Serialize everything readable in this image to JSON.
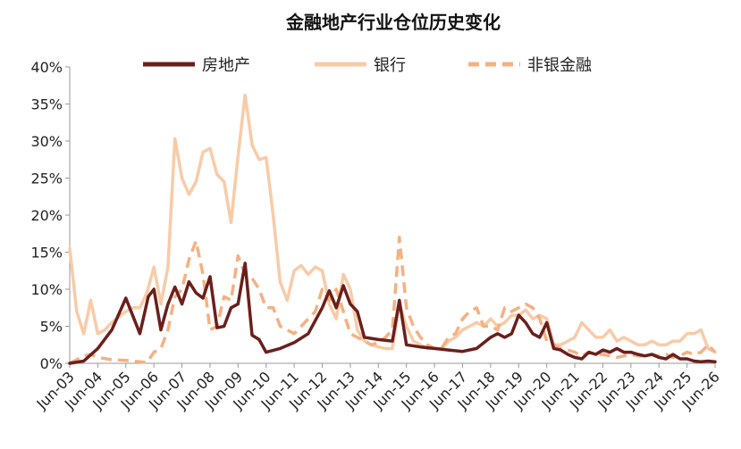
{
  "chart_data": {
    "type": "line",
    "title": "金融地产行业仓位历史变化",
    "xlabel": "",
    "ylabel": "",
    "ylim": [
      0,
      40
    ],
    "y_ticks": [
      "0%",
      "5%",
      "10%",
      "15%",
      "20%",
      "25%",
      "30%",
      "35%",
      "40%"
    ],
    "x_ticks": [
      "Jun-03",
      "Jun-04",
      "Jun-05",
      "Jun-06",
      "Jun-07",
      "Jun-08",
      "Jun-09",
      "Jun-10",
      "Jun-11",
      "Jun-12",
      "Jun-13",
      "Jun-14",
      "Jun-15",
      "Jun-16",
      "Jun-17",
      "Jun-18",
      "Jun-19",
      "Jun-20",
      "Jun-21",
      "Jun-22",
      "Jun-23",
      "Jun-24",
      "Jun-25",
      "Jun-26"
    ],
    "x_range": [
      0,
      23
    ],
    "legend_position": "top",
    "grid": false,
    "series": [
      {
        "name": "房地产",
        "color": "#6b1f1b",
        "style": "solid",
        "points": [
          [
            0,
            0
          ],
          [
            0.5,
            0.3
          ],
          [
            1,
            2
          ],
          [
            1.5,
            4.5
          ],
          [
            2,
            8.8
          ],
          [
            2.5,
            4
          ],
          [
            2.8,
            9
          ],
          [
            3,
            10
          ],
          [
            3.25,
            4.5
          ],
          [
            3.5,
            8
          ],
          [
            3.75,
            10.3
          ],
          [
            4,
            8
          ],
          [
            4.25,
            11
          ],
          [
            4.5,
            9.5
          ],
          [
            4.75,
            8.8
          ],
          [
            5,
            11.7
          ],
          [
            5.25,
            4.8
          ],
          [
            5.5,
            5
          ],
          [
            5.75,
            7.5
          ],
          [
            6,
            8
          ],
          [
            6.25,
            13.5
          ],
          [
            6.5,
            3.8
          ],
          [
            6.75,
            3.2
          ],
          [
            7,
            1.5
          ],
          [
            7.5,
            2
          ],
          [
            8,
            2.8
          ],
          [
            8.5,
            4
          ],
          [
            9,
            7.5
          ],
          [
            9.25,
            9.8
          ],
          [
            9.5,
            7.5
          ],
          [
            9.75,
            10.5
          ],
          [
            10,
            8
          ],
          [
            10.25,
            7
          ],
          [
            10.5,
            3.5
          ],
          [
            11,
            3.2
          ],
          [
            11.5,
            3
          ],
          [
            11.75,
            8.5
          ],
          [
            12,
            2.5
          ],
          [
            12.5,
            2.2
          ],
          [
            13,
            2
          ],
          [
            13.5,
            1.8
          ],
          [
            14,
            1.6
          ],
          [
            14.5,
            2
          ],
          [
            15,
            3.5
          ],
          [
            15.25,
            4
          ],
          [
            15.5,
            3.5
          ],
          [
            15.75,
            4
          ],
          [
            16,
            6.5
          ],
          [
            16.25,
            5.5
          ],
          [
            16.5,
            4
          ],
          [
            16.75,
            3.5
          ],
          [
            17,
            5.5
          ],
          [
            17.25,
            2
          ],
          [
            17.5,
            1.8
          ],
          [
            17.75,
            1.2
          ],
          [
            18,
            0.8
          ],
          [
            18.25,
            0.6
          ],
          [
            18.5,
            1.5
          ],
          [
            18.75,
            1.2
          ],
          [
            19,
            1.8
          ],
          [
            19.25,
            1.5
          ],
          [
            19.5,
            2
          ],
          [
            19.75,
            1.5
          ],
          [
            20,
            1.5
          ],
          [
            20.25,
            1.2
          ],
          [
            20.5,
            1
          ],
          [
            20.75,
            1.2
          ],
          [
            21,
            0.8
          ],
          [
            21.25,
            0.6
          ],
          [
            21.5,
            1.2
          ],
          [
            21.75,
            0.6
          ],
          [
            22,
            0.6
          ],
          [
            22.25,
            0.3
          ],
          [
            22.5,
            0.2
          ],
          [
            22.75,
            0.3
          ],
          [
            23,
            0.2
          ]
        ]
      },
      {
        "name": "银行",
        "color": "#f8cba8",
        "style": "solid",
        "points": [
          [
            0,
            15.5
          ],
          [
            0.25,
            7
          ],
          [
            0.5,
            4
          ],
          [
            0.75,
            8.5
          ],
          [
            1,
            4
          ],
          [
            1.25,
            4.5
          ],
          [
            1.5,
            5.5
          ],
          [
            2,
            7
          ],
          [
            2.25,
            7.5
          ],
          [
            2.5,
            7.5
          ],
          [
            2.75,
            9.5
          ],
          [
            3,
            13
          ],
          [
            3.25,
            8
          ],
          [
            3.5,
            13
          ],
          [
            3.75,
            30.3
          ],
          [
            4,
            25
          ],
          [
            4.25,
            22.8
          ],
          [
            4.5,
            24.5
          ],
          [
            4.75,
            28.5
          ],
          [
            5,
            29
          ],
          [
            5.25,
            25.5
          ],
          [
            5.5,
            24.5
          ],
          [
            5.75,
            19
          ],
          [
            6,
            28
          ],
          [
            6.25,
            36.2
          ],
          [
            6.5,
            29.5
          ],
          [
            6.75,
            27.5
          ],
          [
            7,
            27.8
          ],
          [
            7.25,
            20
          ],
          [
            7.5,
            11
          ],
          [
            7.75,
            8.5
          ],
          [
            8,
            12.5
          ],
          [
            8.25,
            13.2
          ],
          [
            8.5,
            12
          ],
          [
            8.75,
            13
          ],
          [
            9,
            12.5
          ],
          [
            9.25,
            8
          ],
          [
            9.5,
            6
          ],
          [
            9.75,
            12
          ],
          [
            10,
            10
          ],
          [
            10.25,
            4.5
          ],
          [
            10.5,
            3
          ],
          [
            10.75,
            2.5
          ],
          [
            11,
            2.2
          ],
          [
            11.25,
            2
          ],
          [
            11.5,
            2
          ],
          [
            11.75,
            8
          ],
          [
            12,
            5
          ],
          [
            12.25,
            3
          ],
          [
            12.5,
            2.5
          ],
          [
            12.75,
            2
          ],
          [
            13,
            2
          ],
          [
            13.25,
            2
          ],
          [
            13.5,
            3
          ],
          [
            13.75,
            3.5
          ],
          [
            14,
            4.5
          ],
          [
            14.25,
            5
          ],
          [
            14.5,
            5.5
          ],
          [
            14.75,
            5
          ],
          [
            15,
            6
          ],
          [
            15.25,
            5
          ],
          [
            15.5,
            5.5
          ],
          [
            15.75,
            6.5
          ],
          [
            16,
            6.5
          ],
          [
            16.25,
            7.2
          ],
          [
            16.5,
            6
          ],
          [
            16.75,
            6.5
          ],
          [
            17,
            6
          ],
          [
            17.25,
            2.5
          ],
          [
            17.5,
            2.5
          ],
          [
            17.75,
            3
          ],
          [
            18,
            3.5
          ],
          [
            18.25,
            5.5
          ],
          [
            18.5,
            4.5
          ],
          [
            18.75,
            3.5
          ],
          [
            19,
            3.5
          ],
          [
            19.25,
            4.5
          ],
          [
            19.5,
            3
          ],
          [
            19.75,
            3.5
          ],
          [
            20,
            3
          ],
          [
            20.25,
            2.5
          ],
          [
            20.5,
            2.5
          ],
          [
            20.75,
            3
          ],
          [
            21,
            2.5
          ],
          [
            21.25,
            2.5
          ],
          [
            21.5,
            3
          ],
          [
            21.75,
            3
          ],
          [
            22,
            4
          ],
          [
            22.25,
            4
          ],
          [
            22.5,
            4.5
          ],
          [
            22.75,
            2
          ],
          [
            23,
            1.5
          ]
        ]
      },
      {
        "name": "非银金融",
        "color": "#f4b183",
        "style": "dashed",
        "points": [
          [
            0,
            0
          ],
          [
            0.25,
            0.5
          ],
          [
            0.5,
            1
          ],
          [
            0.75,
            1.2
          ],
          [
            1,
            0.8
          ],
          [
            1.5,
            0.5
          ],
          [
            2,
            0.4
          ],
          [
            2.5,
            0.2
          ],
          [
            2.75,
            0.1
          ],
          [
            3,
            1.5
          ],
          [
            3.25,
            2
          ],
          [
            3.5,
            4.5
          ],
          [
            3.75,
            9
          ],
          [
            4,
            10
          ],
          [
            4.25,
            14
          ],
          [
            4.5,
            16.5
          ],
          [
            4.75,
            12
          ],
          [
            5,
            4.5
          ],
          [
            5.25,
            5
          ],
          [
            5.5,
            9
          ],
          [
            5.75,
            8.5
          ],
          [
            6,
            14.5
          ],
          [
            6.25,
            12
          ],
          [
            6.5,
            11.5
          ],
          [
            6.75,
            10
          ],
          [
            7,
            7.5
          ],
          [
            7.25,
            7.5
          ],
          [
            7.5,
            5
          ],
          [
            7.75,
            4.5
          ],
          [
            8,
            4
          ],
          [
            8.25,
            5
          ],
          [
            8.5,
            6
          ],
          [
            8.75,
            7
          ],
          [
            9,
            10
          ],
          [
            9.25,
            8.5
          ],
          [
            9.5,
            10
          ],
          [
            9.75,
            7
          ],
          [
            10,
            4
          ],
          [
            10.25,
            3.5
          ],
          [
            10.5,
            3
          ],
          [
            10.75,
            2.5
          ],
          [
            11,
            2.8
          ],
          [
            11.25,
            3.5
          ],
          [
            11.5,
            4.5
          ],
          [
            11.75,
            17
          ],
          [
            12,
            7.5
          ],
          [
            12.25,
            5
          ],
          [
            12.5,
            3.5
          ],
          [
            12.75,
            2.5
          ],
          [
            13,
            2
          ],
          [
            13.25,
            2
          ],
          [
            13.5,
            3.5
          ],
          [
            13.75,
            4
          ],
          [
            14,
            6
          ],
          [
            14.25,
            7
          ],
          [
            14.5,
            7.5
          ],
          [
            14.75,
            5
          ],
          [
            15,
            5
          ],
          [
            15.25,
            4.5
          ],
          [
            15.5,
            7.5
          ],
          [
            15.75,
            7
          ],
          [
            16,
            7.5
          ],
          [
            16.25,
            8
          ],
          [
            16.5,
            7.5
          ],
          [
            16.75,
            6
          ],
          [
            17,
            3
          ],
          [
            17.25,
            2.5
          ],
          [
            17.5,
            2
          ],
          [
            17.75,
            1.8
          ],
          [
            18,
            1.5
          ],
          [
            18.25,
            1
          ],
          [
            18.5,
            1.5
          ],
          [
            18.75,
            1.2
          ],
          [
            19,
            1.2
          ],
          [
            19.25,
            1
          ],
          [
            19.5,
            0.8
          ],
          [
            19.75,
            1
          ],
          [
            20,
            1.2
          ],
          [
            20.25,
            1
          ],
          [
            20.5,
            1
          ],
          [
            20.75,
            1.2
          ],
          [
            21,
            1
          ],
          [
            21.25,
            1.2
          ],
          [
            21.5,
            0.8
          ],
          [
            21.75,
            1
          ],
          [
            22,
            1.5
          ],
          [
            22.25,
            1.2
          ],
          [
            22.5,
            1.5
          ],
          [
            22.75,
            2.5
          ],
          [
            23,
            1.5
          ]
        ]
      }
    ]
  }
}
